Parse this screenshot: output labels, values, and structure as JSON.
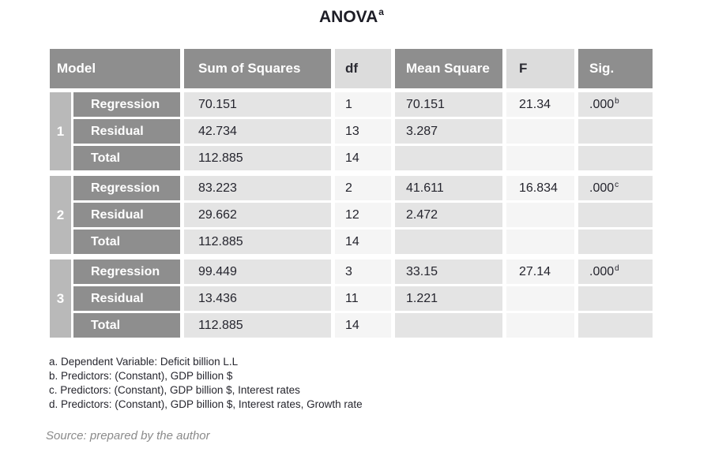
{
  "title": {
    "text": "ANOVA",
    "superscript": "a"
  },
  "table": {
    "headers": {
      "model": "Model",
      "sum_of_squares": "Sum of Squares",
      "df": "df",
      "mean_square": "Mean Square",
      "f": "F",
      "sig": "Sig."
    },
    "groups": [
      {
        "model": "1",
        "rows": [
          {
            "label": "Regression",
            "sum_of_squares": "70.151",
            "df": "1",
            "mean_square": "70.151",
            "f": "21.34",
            "sig": ".000",
            "sig_sup": "b"
          },
          {
            "label": "Residual",
            "sum_of_squares": "42.734",
            "df": "13",
            "mean_square": "3.287",
            "f": "",
            "sig": "",
            "sig_sup": ""
          },
          {
            "label": "Total",
            "sum_of_squares": "112.885",
            "df": "14",
            "mean_square": "",
            "f": "",
            "sig": "",
            "sig_sup": ""
          }
        ]
      },
      {
        "model": "2",
        "rows": [
          {
            "label": "Regression",
            "sum_of_squares": "83.223",
            "df": "2",
            "mean_square": "41.611",
            "f": "16.834",
            "sig": ".000",
            "sig_sup": "c"
          },
          {
            "label": "Residual",
            "sum_of_squares": "29.662",
            "df": "12",
            "mean_square": "2.472",
            "f": "",
            "sig": "",
            "sig_sup": ""
          },
          {
            "label": "Total",
            "sum_of_squares": "112.885",
            "df": "14",
            "mean_square": "",
            "f": "",
            "sig": "",
            "sig_sup": ""
          }
        ]
      },
      {
        "model": "3",
        "rows": [
          {
            "label": "Regression",
            "sum_of_squares": "99.449",
            "df": "3",
            "mean_square": "33.15",
            "f": "27.14",
            "sig": ".000",
            "sig_sup": "d"
          },
          {
            "label": "Residual",
            "sum_of_squares": "13.436",
            "df": "11",
            "mean_square": "1.221",
            "f": "",
            "sig": "",
            "sig_sup": ""
          },
          {
            "label": "Total",
            "sum_of_squares": "112.885",
            "df": "14",
            "mean_square": "",
            "f": "",
            "sig": "",
            "sig_sup": ""
          }
        ]
      }
    ]
  },
  "footnotes": [
    "a. Dependent Variable: Deficit billion L.L",
    "b. Predictors: (Constant), GDP billion $",
    "c. Predictors: (Constant), GDP billion $, Interest rates",
    "d. Predictors: (Constant), GDP billion $, Interest rates, Growth rate"
  ],
  "source": "Source: prepared by the author",
  "colors": {
    "header_dark": "#8e8e8e",
    "header_light": "#dcdcdc",
    "model_strip": "#b9b9b9",
    "cell_light_gray": "#e4e4e4",
    "cell_near_white": "#f5f5f5",
    "text_dark": "#25252e",
    "text_white": "#ffffff",
    "source_gray": "#8b8b8b"
  }
}
